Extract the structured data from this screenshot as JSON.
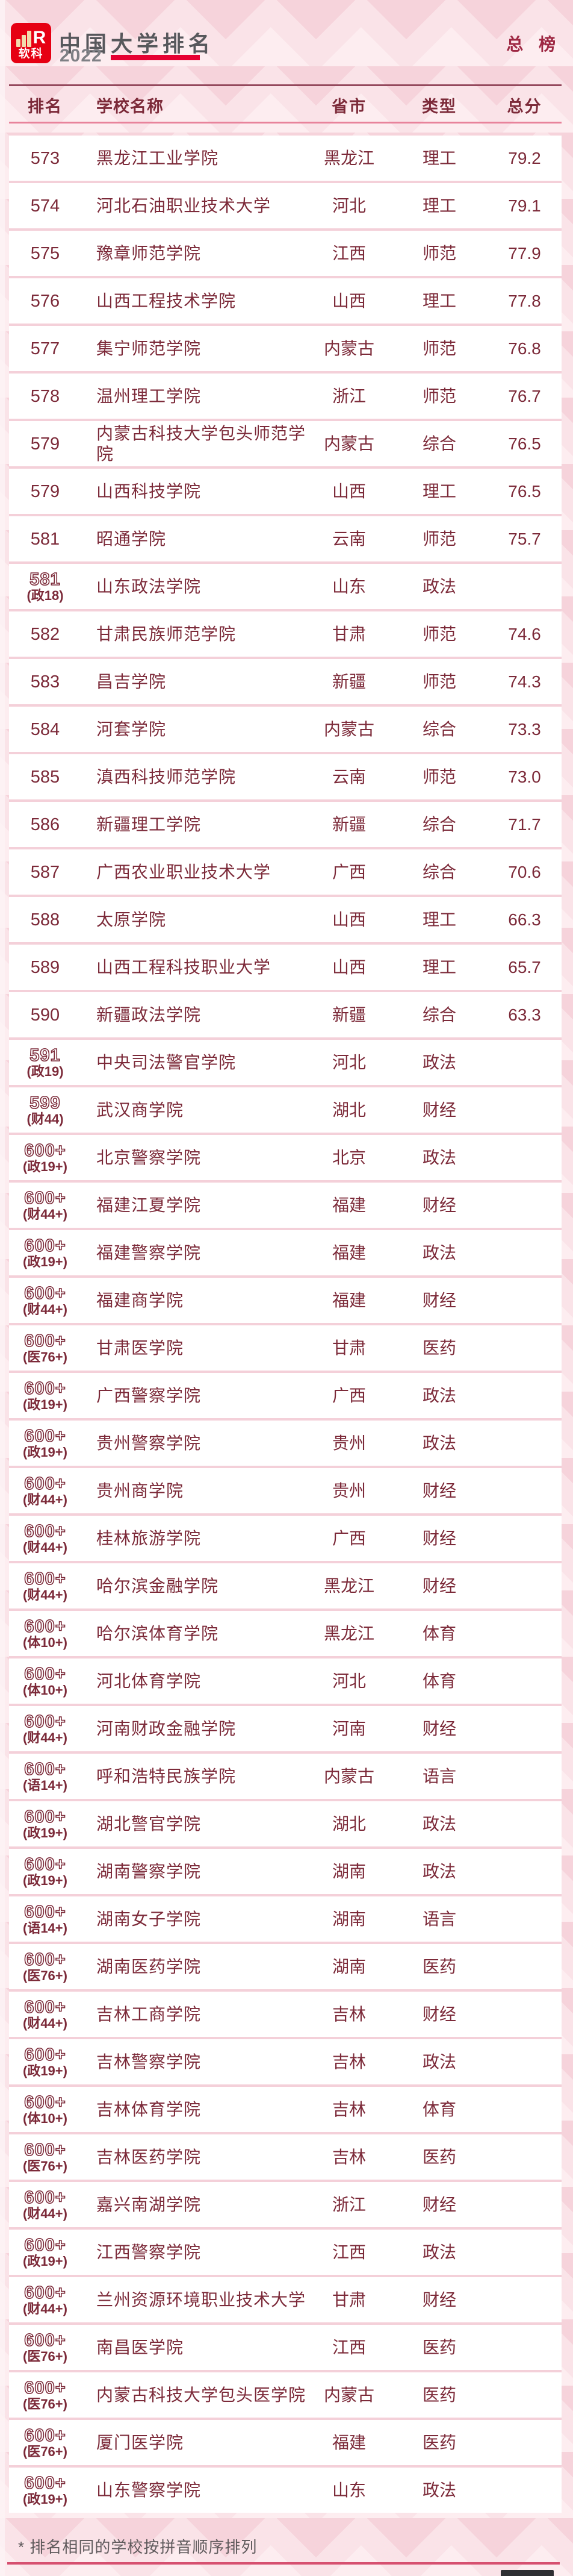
{
  "page": {
    "background": "#fae3e8",
    "pattern_pink_dark": "#f6d3db",
    "pattern_pink_light": "#fdedf0",
    "maroon_text": "#7c2a39",
    "accent_red": "#e60032",
    "board_red": "#9e2843"
  },
  "header": {
    "logo_text": "软科",
    "logo_letter": "R",
    "title": "中国大学排名",
    "year": "2022",
    "board_label": "总 榜"
  },
  "table": {
    "columns": [
      "排名",
      "学校名称",
      "省市",
      "类型",
      "总分"
    ],
    "rows": [
      {
        "rank": "573",
        "rank_note": "",
        "outlined": false,
        "name": "黑龙江工业学院",
        "province": "黑龙江",
        "type": "理工",
        "score": "79.2"
      },
      {
        "rank": "574",
        "rank_note": "",
        "outlined": false,
        "name": "河北石油职业技术大学",
        "province": "河北",
        "type": "理工",
        "score": "79.1"
      },
      {
        "rank": "575",
        "rank_note": "",
        "outlined": false,
        "name": "豫章师范学院",
        "province": "江西",
        "type": "师范",
        "score": "77.9"
      },
      {
        "rank": "576",
        "rank_note": "",
        "outlined": false,
        "name": "山西工程技术学院",
        "province": "山西",
        "type": "理工",
        "score": "77.8"
      },
      {
        "rank": "577",
        "rank_note": "",
        "outlined": false,
        "name": "集宁师范学院",
        "province": "内蒙古",
        "type": "师范",
        "score": "76.8"
      },
      {
        "rank": "578",
        "rank_note": "",
        "outlined": false,
        "name": "温州理工学院",
        "province": "浙江",
        "type": "师范",
        "score": "76.7"
      },
      {
        "rank": "579",
        "rank_note": "",
        "outlined": false,
        "name": "内蒙古科技大学包头师范学院",
        "province": "内蒙古",
        "type": "综合",
        "score": "76.5"
      },
      {
        "rank": "579",
        "rank_note": "",
        "outlined": false,
        "name": "山西科技学院",
        "province": "山西",
        "type": "理工",
        "score": "76.5"
      },
      {
        "rank": "581",
        "rank_note": "",
        "outlined": false,
        "name": "昭通学院",
        "province": "云南",
        "type": "师范",
        "score": "75.7"
      },
      {
        "rank": "581",
        "rank_note": "(政18)",
        "outlined": true,
        "name": "山东政法学院",
        "province": "山东",
        "type": "政法",
        "score": ""
      },
      {
        "rank": "582",
        "rank_note": "",
        "outlined": false,
        "name": "甘肃民族师范学院",
        "province": "甘肃",
        "type": "师范",
        "score": "74.6"
      },
      {
        "rank": "583",
        "rank_note": "",
        "outlined": false,
        "name": "昌吉学院",
        "province": "新疆",
        "type": "师范",
        "score": "74.3"
      },
      {
        "rank": "584",
        "rank_note": "",
        "outlined": false,
        "name": "河套学院",
        "province": "内蒙古",
        "type": "综合",
        "score": "73.3"
      },
      {
        "rank": "585",
        "rank_note": "",
        "outlined": false,
        "name": "滇西科技师范学院",
        "province": "云南",
        "type": "师范",
        "score": "73.0"
      },
      {
        "rank": "586",
        "rank_note": "",
        "outlined": false,
        "name": "新疆理工学院",
        "province": "新疆",
        "type": "综合",
        "score": "71.7"
      },
      {
        "rank": "587",
        "rank_note": "",
        "outlined": false,
        "name": "广西农业职业技术大学",
        "province": "广西",
        "type": "综合",
        "score": "70.6"
      },
      {
        "rank": "588",
        "rank_note": "",
        "outlined": false,
        "name": "太原学院",
        "province": "山西",
        "type": "理工",
        "score": "66.3"
      },
      {
        "rank": "589",
        "rank_note": "",
        "outlined": false,
        "name": "山西工程科技职业大学",
        "province": "山西",
        "type": "理工",
        "score": "65.7"
      },
      {
        "rank": "590",
        "rank_note": "",
        "outlined": false,
        "name": "新疆政法学院",
        "province": "新疆",
        "type": "综合",
        "score": "63.3"
      },
      {
        "rank": "591",
        "rank_note": "(政19)",
        "outlined": true,
        "name": "中央司法警官学院",
        "province": "河北",
        "type": "政法",
        "score": ""
      },
      {
        "rank": "599",
        "rank_note": "(财44)",
        "outlined": true,
        "name": "武汉商学院",
        "province": "湖北",
        "type": "财经",
        "score": ""
      },
      {
        "rank": "600+",
        "rank_note": "(政19+)",
        "outlined": true,
        "name": "北京警察学院",
        "province": "北京",
        "type": "政法",
        "score": ""
      },
      {
        "rank": "600+",
        "rank_note": "(财44+)",
        "outlined": true,
        "name": "福建江夏学院",
        "province": "福建",
        "type": "财经",
        "score": ""
      },
      {
        "rank": "600+",
        "rank_note": "(政19+)",
        "outlined": true,
        "name": "福建警察学院",
        "province": "福建",
        "type": "政法",
        "score": ""
      },
      {
        "rank": "600+",
        "rank_note": "(财44+)",
        "outlined": true,
        "name": "福建商学院",
        "province": "福建",
        "type": "财经",
        "score": ""
      },
      {
        "rank": "600+",
        "rank_note": "(医76+)",
        "outlined": true,
        "name": "甘肃医学院",
        "province": "甘肃",
        "type": "医药",
        "score": ""
      },
      {
        "rank": "600+",
        "rank_note": "(政19+)",
        "outlined": true,
        "name": "广西警察学院",
        "province": "广西",
        "type": "政法",
        "score": ""
      },
      {
        "rank": "600+",
        "rank_note": "(政19+)",
        "outlined": true,
        "name": "贵州警察学院",
        "province": "贵州",
        "type": "政法",
        "score": ""
      },
      {
        "rank": "600+",
        "rank_note": "(财44+)",
        "outlined": true,
        "name": "贵州商学院",
        "province": "贵州",
        "type": "财经",
        "score": ""
      },
      {
        "rank": "600+",
        "rank_note": "(财44+)",
        "outlined": true,
        "name": "桂林旅游学院",
        "province": "广西",
        "type": "财经",
        "score": ""
      },
      {
        "rank": "600+",
        "rank_note": "(财44+)",
        "outlined": true,
        "name": "哈尔滨金融学院",
        "province": "黑龙江",
        "type": "财经",
        "score": ""
      },
      {
        "rank": "600+",
        "rank_note": "(体10+)",
        "outlined": true,
        "name": "哈尔滨体育学院",
        "province": "黑龙江",
        "type": "体育",
        "score": ""
      },
      {
        "rank": "600+",
        "rank_note": "(体10+)",
        "outlined": true,
        "name": "河北体育学院",
        "province": "河北",
        "type": "体育",
        "score": ""
      },
      {
        "rank": "600+",
        "rank_note": "(财44+)",
        "outlined": true,
        "name": "河南财政金融学院",
        "province": "河南",
        "type": "财经",
        "score": ""
      },
      {
        "rank": "600+",
        "rank_note": "(语14+)",
        "outlined": true,
        "name": "呼和浩特民族学院",
        "province": "内蒙古",
        "type": "语言",
        "score": ""
      },
      {
        "rank": "600+",
        "rank_note": "(政19+)",
        "outlined": true,
        "name": "湖北警官学院",
        "province": "湖北",
        "type": "政法",
        "score": ""
      },
      {
        "rank": "600+",
        "rank_note": "(政19+)",
        "outlined": true,
        "name": "湖南警察学院",
        "province": "湖南",
        "type": "政法",
        "score": ""
      },
      {
        "rank": "600+",
        "rank_note": "(语14+)",
        "outlined": true,
        "name": "湖南女子学院",
        "province": "湖南",
        "type": "语言",
        "score": ""
      },
      {
        "rank": "600+",
        "rank_note": "(医76+)",
        "outlined": true,
        "name": "湖南医药学院",
        "province": "湖南",
        "type": "医药",
        "score": ""
      },
      {
        "rank": "600+",
        "rank_note": "(财44+)",
        "outlined": true,
        "name": "吉林工商学院",
        "province": "吉林",
        "type": "财经",
        "score": ""
      },
      {
        "rank": "600+",
        "rank_note": "(政19+)",
        "outlined": true,
        "name": "吉林警察学院",
        "province": "吉林",
        "type": "政法",
        "score": ""
      },
      {
        "rank": "600+",
        "rank_note": "(体10+)",
        "outlined": true,
        "name": "吉林体育学院",
        "province": "吉林",
        "type": "体育",
        "score": ""
      },
      {
        "rank": "600+",
        "rank_note": "(医76+)",
        "outlined": true,
        "name": "吉林医药学院",
        "province": "吉林",
        "type": "医药",
        "score": ""
      },
      {
        "rank": "600+",
        "rank_note": "(财44+)",
        "outlined": true,
        "name": "嘉兴南湖学院",
        "province": "浙江",
        "type": "财经",
        "score": ""
      },
      {
        "rank": "600+",
        "rank_note": "(政19+)",
        "outlined": true,
        "name": "江西警察学院",
        "province": "江西",
        "type": "政法",
        "score": ""
      },
      {
        "rank": "600+",
        "rank_note": "(财44+)",
        "outlined": true,
        "name": "兰州资源环境职业技术大学",
        "province": "甘肃",
        "type": "财经",
        "score": ""
      },
      {
        "rank": "600+",
        "rank_note": "(医76+)",
        "outlined": true,
        "name": "南昌医学院",
        "province": "江西",
        "type": "医药",
        "score": ""
      },
      {
        "rank": "600+",
        "rank_note": "(医76+)",
        "outlined": true,
        "name": "内蒙古科技大学包头医学院",
        "province": "内蒙古",
        "type": "医药",
        "score": ""
      },
      {
        "rank": "600+",
        "rank_note": "(医76+)",
        "outlined": true,
        "name": "厦门医学院",
        "province": "福建",
        "type": "医药",
        "score": ""
      },
      {
        "rank": "600+",
        "rank_note": "(政19+)",
        "outlined": true,
        "name": "山东警察学院",
        "province": "山东",
        "type": "政法",
        "score": ""
      }
    ]
  },
  "footer": {
    "note": "* 排名相同的学校按拼音顺序排列"
  }
}
